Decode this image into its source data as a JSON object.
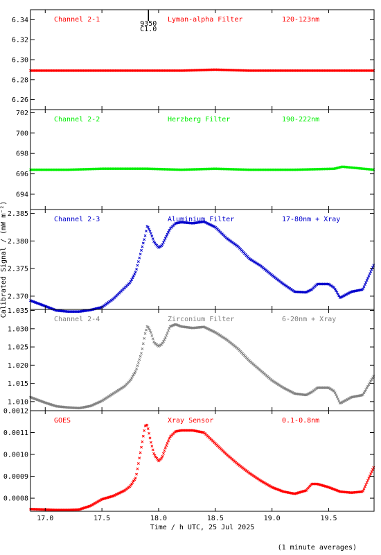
{
  "figure": {
    "xlabel": "Time / h UTC, 25 Jul 2025",
    "ylabel": "Calibrated Signal / (mW m⁻²)",
    "footnote": "(1 minute averages)",
    "marker": {
      "line1": "9350",
      "line2": "C1.0",
      "x": 17.91
    }
  },
  "chart_data": [
    {
      "type": "scatter",
      "channel": "Channel 2-1",
      "filter": "Lyman-alpha Filter",
      "band": "120-123nm",
      "color": "#ff0000",
      "xlim": [
        16.87,
        19.9
      ],
      "ylim": [
        6.25,
        6.35
      ],
      "yticks": [
        "6.26",
        "6.28",
        "6.30",
        "6.32",
        "6.34"
      ],
      "yticks_v": [
        6.26,
        6.28,
        6.3,
        6.32,
        6.34
      ],
      "series": [
        {
          "x": [
            16.87,
            17.2,
            17.6,
            18.0,
            18.2,
            18.5,
            18.8,
            19.2,
            19.6,
            19.9
          ],
          "y": [
            6.289,
            6.289,
            6.289,
            6.289,
            6.289,
            6.29,
            6.289,
            6.289,
            6.289,
            6.289
          ]
        }
      ]
    },
    {
      "type": "scatter",
      "channel": "Channel 2-2",
      "filter": "Herzberg Filter",
      "band": "190-222nm",
      "color": "#00ee00",
      "xlim": [
        16.87,
        19.9
      ],
      "ylim": [
        692.5,
        702.3
      ],
      "yticks": [
        "694",
        "696",
        "698",
        "700",
        "702"
      ],
      "yticks_v": [
        694,
        696,
        698,
        700,
        702
      ],
      "series": [
        {
          "x": [
            16.87,
            17.2,
            17.5,
            17.9,
            18.2,
            18.5,
            18.8,
            19.2,
            19.55,
            19.62,
            19.9
          ],
          "y": [
            696.4,
            696.4,
            696.5,
            696.5,
            696.4,
            696.5,
            696.4,
            696.4,
            696.5,
            696.7,
            696.4
          ]
        }
      ]
    },
    {
      "type": "scatter",
      "channel": "Channel 2-3",
      "filter": "Aluminium Filter",
      "band": "17-80nm + Xray",
      "color": "#0000cc",
      "xlim": [
        16.87,
        19.9
      ],
      "ylim": [
        2.3676,
        2.3857
      ],
      "yticks": [
        "2.370",
        "2.375",
        "2.380",
        "2.385"
      ],
      "yticks_v": [
        2.37,
        2.375,
        2.38,
        2.385
      ],
      "series": [
        {
          "x": [
            16.87,
            17.0,
            17.1,
            17.2,
            17.3,
            17.4,
            17.5,
            17.6,
            17.7,
            17.75,
            17.8,
            17.85,
            17.88,
            17.9,
            17.93,
            17.96,
            18.0,
            18.03,
            18.06,
            18.1,
            18.15,
            18.2,
            18.3,
            18.4,
            18.5,
            18.6,
            18.7,
            18.8,
            18.9,
            19.0,
            19.1,
            19.2,
            19.3,
            19.35,
            19.4,
            19.5,
            19.55,
            19.6,
            19.7,
            19.8,
            19.9
          ],
          "y": [
            2.3692,
            2.3682,
            2.3674,
            2.3672,
            2.3672,
            2.3675,
            2.368,
            2.3695,
            2.3715,
            2.3725,
            2.3745,
            2.3785,
            2.3808,
            2.3828,
            2.3815,
            2.3798,
            2.3788,
            2.3792,
            2.3805,
            2.3822,
            2.3832,
            2.3834,
            2.3832,
            2.3835,
            2.3825,
            2.3805,
            2.379,
            2.3768,
            2.3755,
            2.3738,
            2.3722,
            2.3708,
            2.3707,
            2.3712,
            2.3722,
            2.3722,
            2.3715,
            2.3697,
            2.3708,
            2.3712,
            2.3758
          ]
        }
      ]
    },
    {
      "type": "scatter",
      "channel": "Channel 2-4",
      "filter": "Zirconium Filter",
      "band": "6-20nm + Xray",
      "color": "#808080",
      "xlim": [
        16.87,
        19.9
      ],
      "ylim": [
        1.0075,
        1.0353
      ],
      "yticks": [
        "1.010",
        "1.015",
        "1.020",
        "1.025",
        "1.030",
        "1.035"
      ],
      "yticks_v": [
        1.01,
        1.015,
        1.02,
        1.025,
        1.03,
        1.035
      ],
      "series": [
        {
          "x": [
            16.87,
            17.0,
            17.1,
            17.2,
            17.3,
            17.4,
            17.5,
            17.6,
            17.7,
            17.75,
            17.8,
            17.85,
            17.88,
            17.9,
            17.93,
            17.96,
            18.0,
            18.03,
            18.06,
            18.1,
            18.15,
            18.2,
            18.3,
            18.4,
            18.5,
            18.6,
            18.7,
            18.8,
            18.9,
            19.0,
            19.1,
            19.2,
            19.3,
            19.35,
            19.4,
            19.5,
            19.55,
            19.6,
            19.7,
            19.8,
            19.9
          ],
          "y": [
            1.0112,
            1.0097,
            1.0087,
            1.0084,
            1.0082,
            1.0088,
            1.0102,
            1.0122,
            1.0142,
            1.0158,
            1.0185,
            1.0235,
            1.0285,
            1.0308,
            1.0292,
            1.0262,
            1.0252,
            1.0258,
            1.0275,
            1.0306,
            1.0312,
            1.0306,
            1.0302,
            1.0305,
            1.029,
            1.027,
            1.0245,
            1.0212,
            1.0185,
            1.0158,
            1.0138,
            1.0122,
            1.0118,
            1.0126,
            1.0138,
            1.0138,
            1.0128,
            1.0095,
            1.0112,
            1.0118,
            1.0172
          ]
        }
      ]
    },
    {
      "type": "scatter",
      "channel": "GOES",
      "filter": "Xray Sensor",
      "band": "0.1-0.8nm",
      "color": "#ff0000",
      "xlim": [
        16.87,
        19.9
      ],
      "ylim": [
        0.00074,
        0.0012
      ],
      "yticks": [
        "0.0008",
        "0.0009",
        "0.0010",
        "0.0011",
        "0.0012"
      ],
      "yticks_v": [
        0.0008,
        0.0009,
        0.001,
        0.0011,
        0.0012
      ],
      "series": [
        {
          "x": [
            16.87,
            17.0,
            17.1,
            17.2,
            17.3,
            17.4,
            17.5,
            17.6,
            17.7,
            17.75,
            17.8,
            17.85,
            17.88,
            17.9,
            17.93,
            17.96,
            18.0,
            18.03,
            18.06,
            18.1,
            18.15,
            18.2,
            18.3,
            18.4,
            18.5,
            18.6,
            18.7,
            18.8,
            18.9,
            19.0,
            19.1,
            19.2,
            19.3,
            19.35,
            19.4,
            19.5,
            19.55,
            19.6,
            19.7,
            19.8,
            19.9
          ],
          "y": [
            0.00075,
            0.000748,
            0.000746,
            0.000746,
            0.000748,
            0.000765,
            0.000795,
            0.00081,
            0.000835,
            0.000855,
            0.000895,
            0.00104,
            0.00113,
            0.001135,
            0.00106,
            0.001,
            0.00097,
            0.000985,
            0.00103,
            0.00108,
            0.001105,
            0.00111,
            0.00111,
            0.0011,
            0.00105,
            0.001,
            0.000955,
            0.000915,
            0.00088,
            0.00085,
            0.00083,
            0.00082,
            0.000835,
            0.000865,
            0.000865,
            0.00085,
            0.00084,
            0.00083,
            0.000825,
            0.00083,
            0.000945
          ]
        }
      ]
    }
  ],
  "xaxis": {
    "ticks": [
      "17.0",
      "17.5",
      "18.0",
      "18.5",
      "19.0",
      "19.5"
    ],
    "ticks_v": [
      17.0,
      17.5,
      18.0,
      18.5,
      19.0,
      19.5
    ]
  }
}
